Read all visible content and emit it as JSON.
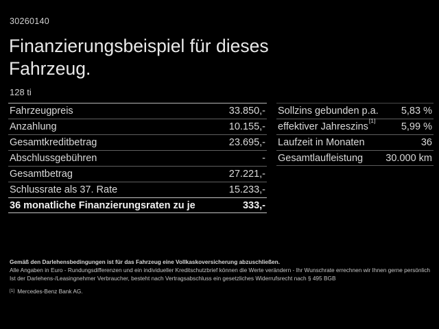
{
  "page": {
    "background": "#000000",
    "text_color": "#e9e9e9",
    "separator_color": "#606060",
    "bright_separator_color": "#c6c6c6"
  },
  "header": {
    "vehicle_id": "30260140",
    "title_line1": "Finanzierungsbeispiel für dieses",
    "title_line2": "Fahrzeug.",
    "model": "128 ti"
  },
  "finance_table": {
    "rows": [
      {
        "label": "Fahrzeugpreis",
        "value": "33.850,-"
      },
      {
        "label": "Anzahlung",
        "value": "10.155,-"
      },
      {
        "label": "Gesamtkreditbetrag",
        "value": "23.695,-"
      },
      {
        "label": "Abschlussgebühren",
        "value": "-"
      },
      {
        "label": "Gesamtbetrag",
        "value": "27.221,-"
      },
      {
        "label": "Schlussrate als 37. Rate",
        "value": "15.233,-"
      },
      {
        "label": "36 monatliche Finanzierungsraten zu je",
        "value": "333,-",
        "emphasis": true
      }
    ]
  },
  "conditions_table": {
    "rows": [
      {
        "label": "Sollzins gebunden p.a.",
        "value": "5,83 %"
      },
      {
        "label": "effektiver Jahreszins",
        "sup": "[1]",
        "value": "5,99 %"
      },
      {
        "label": "Laufzeit in Monaten",
        "value": "36"
      },
      {
        "label": "Gesamtlaufleistung",
        "value": "30.000 km"
      }
    ]
  },
  "footer": {
    "line1": "Gemäß den Darlehensbedingungen ist für das Fahrzeug eine Vollkaskoversicherung abzuschließen.",
    "line2": "Alle Angaben in Euro - Rundungsdifferenzen und ein individueller Kreditschutzbrief können die Werte verändern - Ihr Wunschrate errechnen wir Ihnen gerne persönlich",
    "line3": "Ist der Darlehens-/Leasingnehmer Verbraucher, besteht nach Vertragsabschluss ein gesetzliches Widerrufsrecht nach § 495 BGB",
    "footnote_marker": "[1]",
    "footnote_text": "Mercedes-Benz Bank AG."
  }
}
